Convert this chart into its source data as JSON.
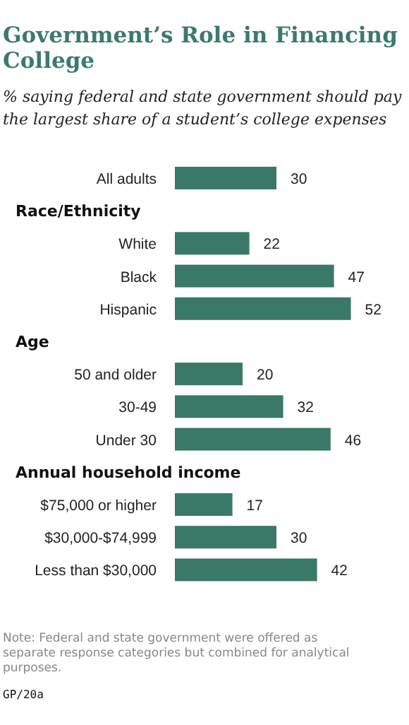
{
  "chart_data": {
    "type": "bar",
    "orientation": "horizontal",
    "title": "Government’s Role in Financing College",
    "subtitle": "% saying federal and state government should pay the largest share of a student’s college expenses",
    "categories": [
      "All adults",
      null,
      "White",
      "Black",
      "Hispanic",
      null,
      "50 and older",
      "30-49",
      "Under 30",
      null,
      "$75,000 or higher",
      "$30,000-$74,999",
      "Less than $30,000"
    ],
    "values": [
      30,
      null,
      22,
      47,
      52,
      null,
      20,
      32,
      46,
      null,
      17,
      30,
      42
    ],
    "color": "#3a7868",
    "data_labels": true,
    "annotations": [
      "Race/Ethnicity",
      "Age",
      "Annual household income",
      "Note: Federal and state government were offered as separate response categories but combined for analytical purposes.",
      "GP/20a"
    ]
  }
}
